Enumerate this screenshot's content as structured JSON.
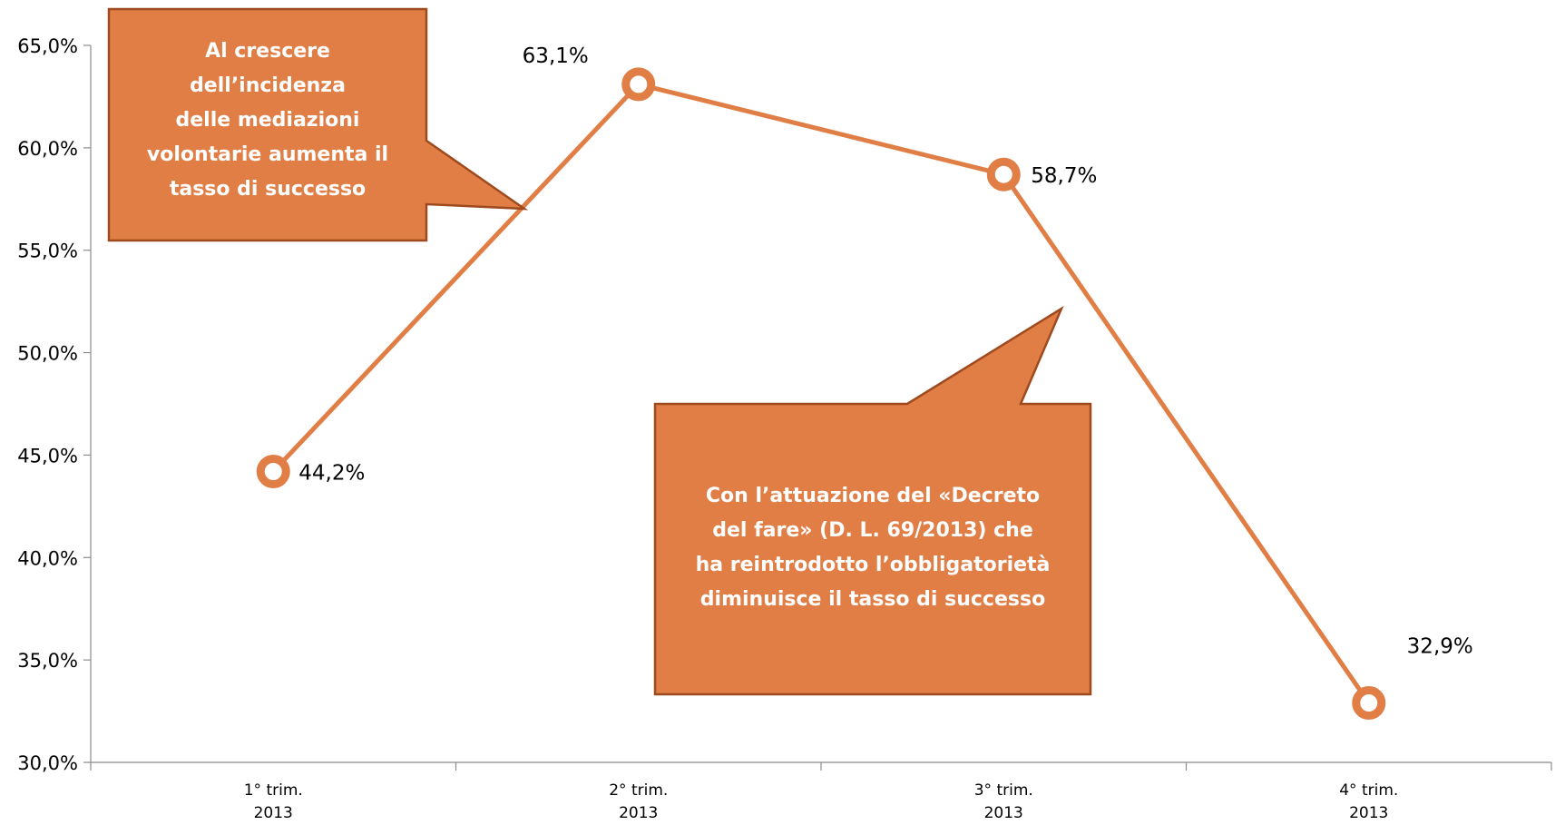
{
  "chart_data": {
    "type": "line",
    "categories": [
      [
        "1° trim.",
        "2013"
      ],
      [
        "2° trim.",
        "2013"
      ],
      [
        "3° trim.",
        "2013"
      ],
      [
        "4° trim.",
        "2013"
      ]
    ],
    "values": [
      44.2,
      63.1,
      58.7,
      32.9
    ],
    "value_labels": [
      "44,2%",
      "63,1%",
      "58,7%",
      "32,9%"
    ],
    "y_ticks": [
      30,
      35,
      40,
      45,
      50,
      55,
      60,
      65
    ],
    "y_tick_labels": [
      "30,0%",
      "35,0%",
      "40,0%",
      "45,0%",
      "50,0%",
      "55,0%",
      "60,0%",
      "65,0%"
    ],
    "ylim": [
      30,
      65
    ],
    "grid": false,
    "legend": "none",
    "title": "",
    "xlabel": "",
    "ylabel": "",
    "colors": {
      "line": "#E07E45",
      "callout_fill": "#E07E45",
      "callout_border": "#9E4A1E"
    },
    "annotations": [
      {
        "id": "callout-left",
        "lines": [
          "Al crescere",
          "dell’incidenza",
          "delle mediazioni",
          "volontarie aumenta il",
          "tasso di successo"
        ]
      },
      {
        "id": "callout-right",
        "lines": [
          "Con l’attuazione del «Decreto",
          "del fare» (D. L. 69/2013) che",
          "ha reintrodotto l’obbligatorietà",
          "diminuisce il tasso di successo"
        ]
      }
    ]
  }
}
